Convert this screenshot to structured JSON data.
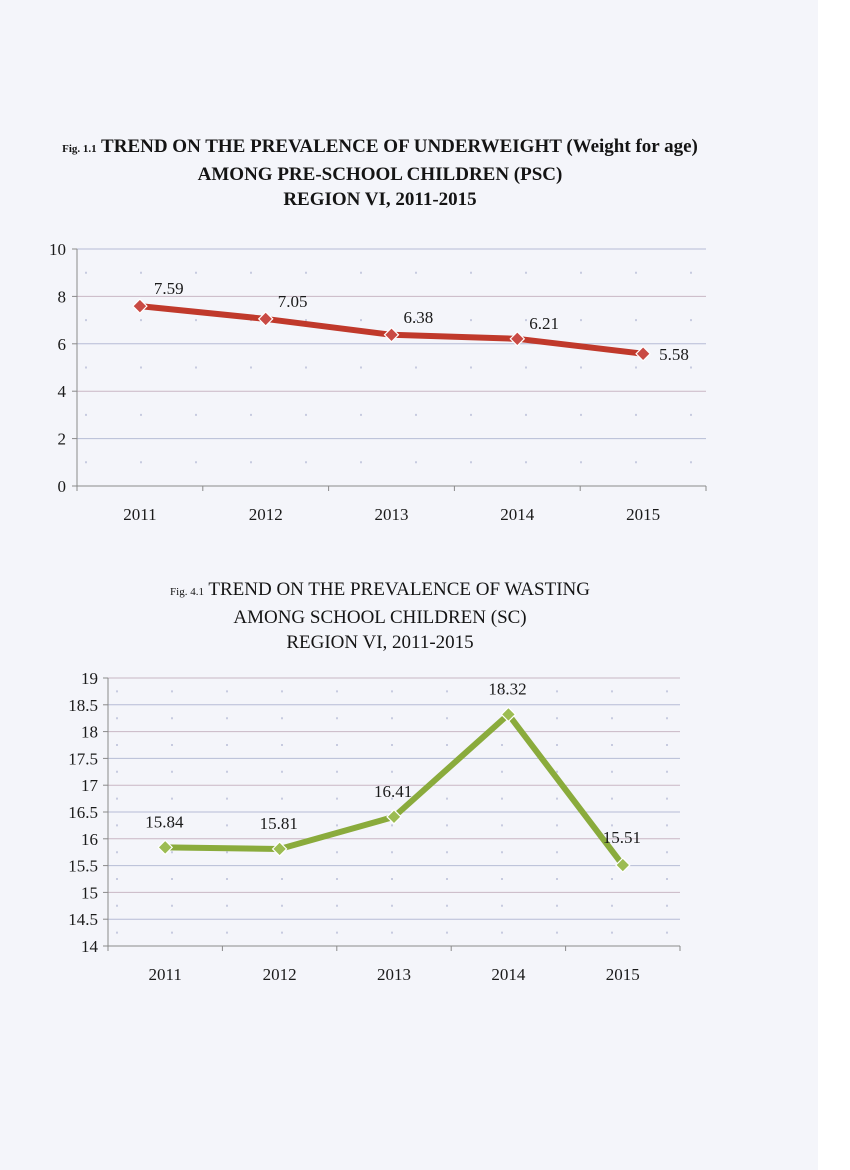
{
  "charts": [
    {
      "type": "line",
      "fig_prefix": "Fig. 1.1",
      "title_lines": [
        "TREND ON THE PREVALENCE OF UNDERWEIGHT (Weight for age)",
        "AMONG PRE-SCHOOL CHILDREN (PSC)",
        "REGION VI, 2011-2015"
      ],
      "categories": [
        "2011",
        "2012",
        "2013",
        "2014",
        "2015"
      ],
      "values": [
        7.59,
        7.05,
        6.38,
        6.21,
        5.58
      ],
      "data_labels": [
        "7.59",
        "7.05",
        "6.38",
        "6.21",
        "5.58"
      ],
      "yticks": [
        "0",
        "2",
        "4",
        "6",
        "8",
        "10"
      ],
      "ylim": [
        0,
        10
      ],
      "line_color": "#c0392b",
      "marker_color": "#c94a44"
    },
    {
      "type": "line",
      "fig_prefix": "Fig. 4.1",
      "title_lines": [
        "TREND ON THE PREVALENCE OF WASTING",
        "AMONG SCHOOL CHILDREN (SC)",
        "REGION VI, 2011-2015"
      ],
      "categories": [
        "2011",
        "2012",
        "2013",
        "2014",
        "2015"
      ],
      "values": [
        15.84,
        15.81,
        16.41,
        18.32,
        15.51
      ],
      "data_labels": [
        "15.84",
        "15.81",
        "16.41",
        "18.32",
        "15.51"
      ],
      "yticks": [
        "14",
        "14.5",
        "15",
        "15.5",
        "16",
        "16.5",
        "17",
        "17.5",
        "18",
        "18.5",
        "19"
      ],
      "ylim": [
        14,
        19
      ],
      "line_color": "#8aab3c",
      "marker_color": "#9cbc52"
    }
  ],
  "chart_data": [
    {
      "type": "line",
      "title": "Fig. 1.1 TREND ON THE PREVALENCE OF UNDERWEIGHT (Weight for age) AMONG PRE-SCHOOL CHILDREN (PSC) REGION VI, 2011-2015",
      "categories": [
        "2011",
        "2012",
        "2013",
        "2014",
        "2015"
      ],
      "values": [
        7.59,
        7.05,
        6.38,
        6.21,
        5.58
      ],
      "xlabel": "",
      "ylabel": "",
      "ylim": [
        0,
        10
      ],
      "grid": true,
      "legend": "none"
    },
    {
      "type": "line",
      "title": "Fig. 4.1 TREND ON THE PREVALENCE OF WASTING AMONG SCHOOL CHILDREN (SC) REGION VI, 2011-2015",
      "categories": [
        "2011",
        "2012",
        "2013",
        "2014",
        "2015"
      ],
      "values": [
        15.84,
        15.81,
        16.41,
        18.32,
        15.51
      ],
      "xlabel": "",
      "ylabel": "",
      "ylim": [
        14,
        19
      ],
      "grid": true,
      "legend": "none"
    }
  ]
}
